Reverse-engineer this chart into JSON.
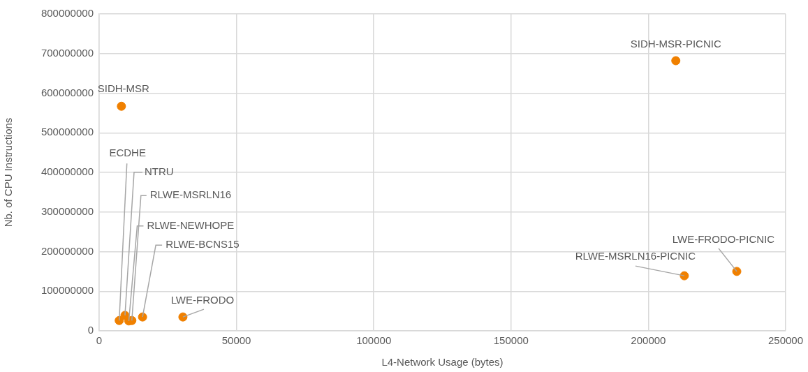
{
  "chart_data": {
    "type": "scatter",
    "xlabel": "L4-Network Usage (bytes)",
    "ylabel": "Nb. of CPU Instructions",
    "x": [
      8100,
      210000,
      7300,
      9400,
      11900,
      10800,
      15800,
      30500,
      213100,
      232200
    ],
    "series": [
      {
        "color": "#f08000",
        "values": [
          567000000,
          682000000,
          26000000,
          39000000,
          26000000,
          25000000,
          35000000,
          35000000,
          139000000,
          150000000
        ]
      }
    ],
    "xlim": [
      0,
      250000
    ],
    "xticks": [
      0,
      50000,
      100000,
      150000,
      200000,
      250000
    ],
    "ylim": [
      0,
      800000000
    ],
    "yticks": [
      0,
      100000000,
      200000000,
      300000000,
      400000000,
      500000000,
      600000000,
      700000000,
      800000000
    ],
    "grid": true,
    "legend": false,
    "marker": "circle",
    "annotations": [
      {
        "text": "SIDH-MSR",
        "x": 8100,
        "y": 567000000
      },
      {
        "text": "SIDH-MSR-PICNIC",
        "x": 210000,
        "y": 682000000
      },
      {
        "text": "ECDHE",
        "x": 7300,
        "y": 26000000
      },
      {
        "text": "NTRU",
        "x": 9400,
        "y": 39000000
      },
      {
        "text": "RLWE-MSRLN16",
        "x": 11900,
        "y": 26000000
      },
      {
        "text": "RLWE-NEWHOPE",
        "x": 10800,
        "y": 25000000
      },
      {
        "text": "RLWE-BCNS15",
        "x": 15800,
        "y": 35000000
      },
      {
        "text": "LWE-FRODO",
        "x": 30500,
        "y": 35000000
      },
      {
        "text": "RLWE-MSRLN16-PICNIC",
        "x": 213100,
        "y": 139000000
      },
      {
        "text": "LWE-FRODO-PICNIC",
        "x": 232200,
        "y": 150000000
      }
    ]
  }
}
